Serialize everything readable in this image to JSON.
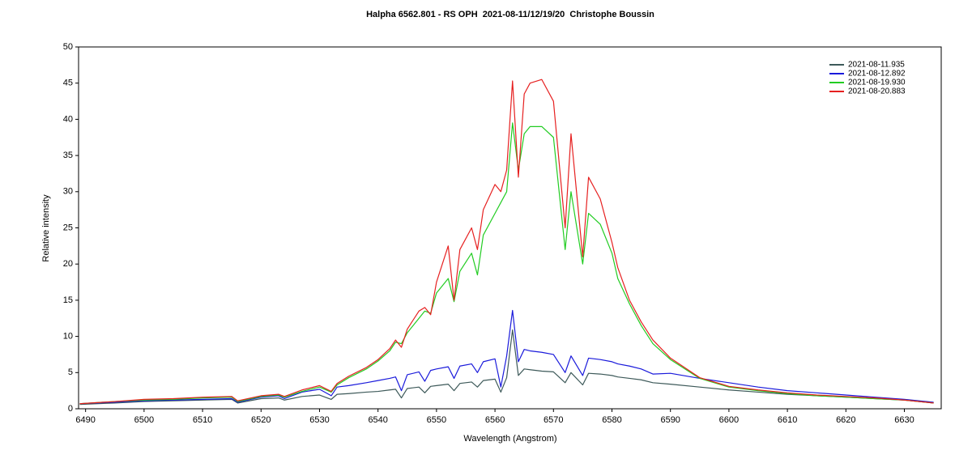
{
  "chart_data": {
    "type": "line",
    "title": "Halpha 6562.801 - RS OPH  2021-08-11/12/19/20  Christophe Boussin",
    "x_label": "Wavelength (Angstrom)",
    "y_label": "Relative intensity",
    "x": [
      6489,
      6495,
      6500,
      6505,
      6510,
      6515,
      6516,
      6520,
      6523,
      6524,
      6527,
      6530,
      6532,
      6533,
      6535,
      6538,
      6540,
      6542,
      6543,
      6544,
      6545,
      6547,
      6548,
      6549,
      6550,
      6552,
      6553,
      6554,
      6556,
      6557,
      6558,
      6560,
      6561,
      6562,
      6563,
      6564,
      6565,
      6566,
      6568,
      6570,
      6572,
      6573,
      6575,
      6576,
      6578,
      6580,
      6581,
      6583,
      6585,
      6587,
      6590,
      6595,
      6600,
      6605,
      6610,
      6615,
      6620,
      6625,
      6630,
      6635
    ],
    "series": [
      {
        "name": "2021-08-11.935",
        "color": "#3d5959",
        "values": [
          0.6,
          0.8,
          1.0,
          1.1,
          1.2,
          1.3,
          0.8,
          1.4,
          1.5,
          1.2,
          1.7,
          1.9,
          1.3,
          2.0,
          2.1,
          2.3,
          2.4,
          2.6,
          2.7,
          1.5,
          2.8,
          3.0,
          2.2,
          3.1,
          3.2,
          3.4,
          2.5,
          3.5,
          3.7,
          3.0,
          3.9,
          4.1,
          2.3,
          4.3,
          10.9,
          4.6,
          5.5,
          5.4,
          5.2,
          5.1,
          3.6,
          5.0,
          3.3,
          4.9,
          4.8,
          4.6,
          4.4,
          4.2,
          4.0,
          3.6,
          3.4,
          3.0,
          2.6,
          2.3,
          2.0,
          1.8,
          1.6,
          1.4,
          1.2,
          0.8
        ]
      },
      {
        "name": "2021-08-12.892",
        "color": "#1a1adb",
        "values": [
          0.7,
          0.9,
          1.1,
          1.2,
          1.3,
          1.4,
          0.9,
          1.6,
          1.8,
          1.4,
          2.3,
          2.7,
          1.8,
          3.0,
          3.2,
          3.6,
          3.9,
          4.2,
          4.4,
          2.5,
          4.7,
          5.1,
          3.8,
          5.3,
          5.5,
          5.8,
          4.2,
          5.9,
          6.2,
          5.0,
          6.5,
          6.9,
          3.0,
          7.3,
          13.6,
          6.5,
          8.2,
          8.0,
          7.8,
          7.5,
          5.0,
          7.3,
          4.6,
          7.0,
          6.8,
          6.5,
          6.2,
          5.9,
          5.5,
          4.8,
          4.9,
          4.2,
          3.6,
          3.0,
          2.5,
          2.2,
          1.9,
          1.6,
          1.3,
          0.9
        ]
      },
      {
        "name": "2021-08-19.930",
        "color": "#22cc22",
        "values": [
          0.7,
          1.0,
          1.2,
          1.3,
          1.5,
          1.6,
          1.0,
          1.7,
          1.9,
          1.6,
          2.4,
          3.0,
          2.3,
          3.3,
          4.3,
          5.5,
          6.6,
          8.0,
          9.2,
          9.0,
          10.5,
          12.5,
          13.5,
          13.2,
          16.0,
          18.0,
          14.8,
          19.0,
          21.5,
          18.5,
          24.0,
          27.0,
          28.5,
          30.0,
          39.5,
          33.0,
          38.0,
          39.0,
          39.0,
          37.5,
          22.0,
          30.0,
          20.0,
          27.0,
          25.5,
          21.5,
          18.0,
          14.5,
          11.5,
          9.0,
          6.8,
          4.2,
          3.0,
          2.5,
          2.1,
          1.8,
          1.6,
          1.4,
          1.2,
          0.8
        ]
      },
      {
        "name": "2021-08-20.883",
        "color": "#e62020",
        "values": [
          0.7,
          1.0,
          1.3,
          1.4,
          1.6,
          1.7,
          1.1,
          1.8,
          2.0,
          1.7,
          2.6,
          3.2,
          2.4,
          3.5,
          4.5,
          5.7,
          6.8,
          8.3,
          9.5,
          8.5,
          11.0,
          13.5,
          14.0,
          13.0,
          17.5,
          22.5,
          15.0,
          22.0,
          25.0,
          22.0,
          27.5,
          31.0,
          30.0,
          33.0,
          45.3,
          32.0,
          43.5,
          45.0,
          45.5,
          42.5,
          25.0,
          38.0,
          21.0,
          32.0,
          29.0,
          23.0,
          19.5,
          15.0,
          12.0,
          9.5,
          7.0,
          4.3,
          3.1,
          2.6,
          2.2,
          1.9,
          1.7,
          1.5,
          1.2,
          0.8
        ]
      }
    ],
    "xlim": [
      6488.8,
      6636.3
    ],
    "xticks": [
      6490,
      6500,
      6510,
      6520,
      6530,
      6540,
      6550,
      6560,
      6570,
      6580,
      6590,
      6600,
      6610,
      6620,
      6630
    ],
    "ylim": [
      0,
      50
    ],
    "yticks": [
      0,
      5,
      10,
      15,
      20,
      25,
      30,
      35,
      40,
      45,
      50
    ],
    "grid": false,
    "legend": "top-right"
  }
}
